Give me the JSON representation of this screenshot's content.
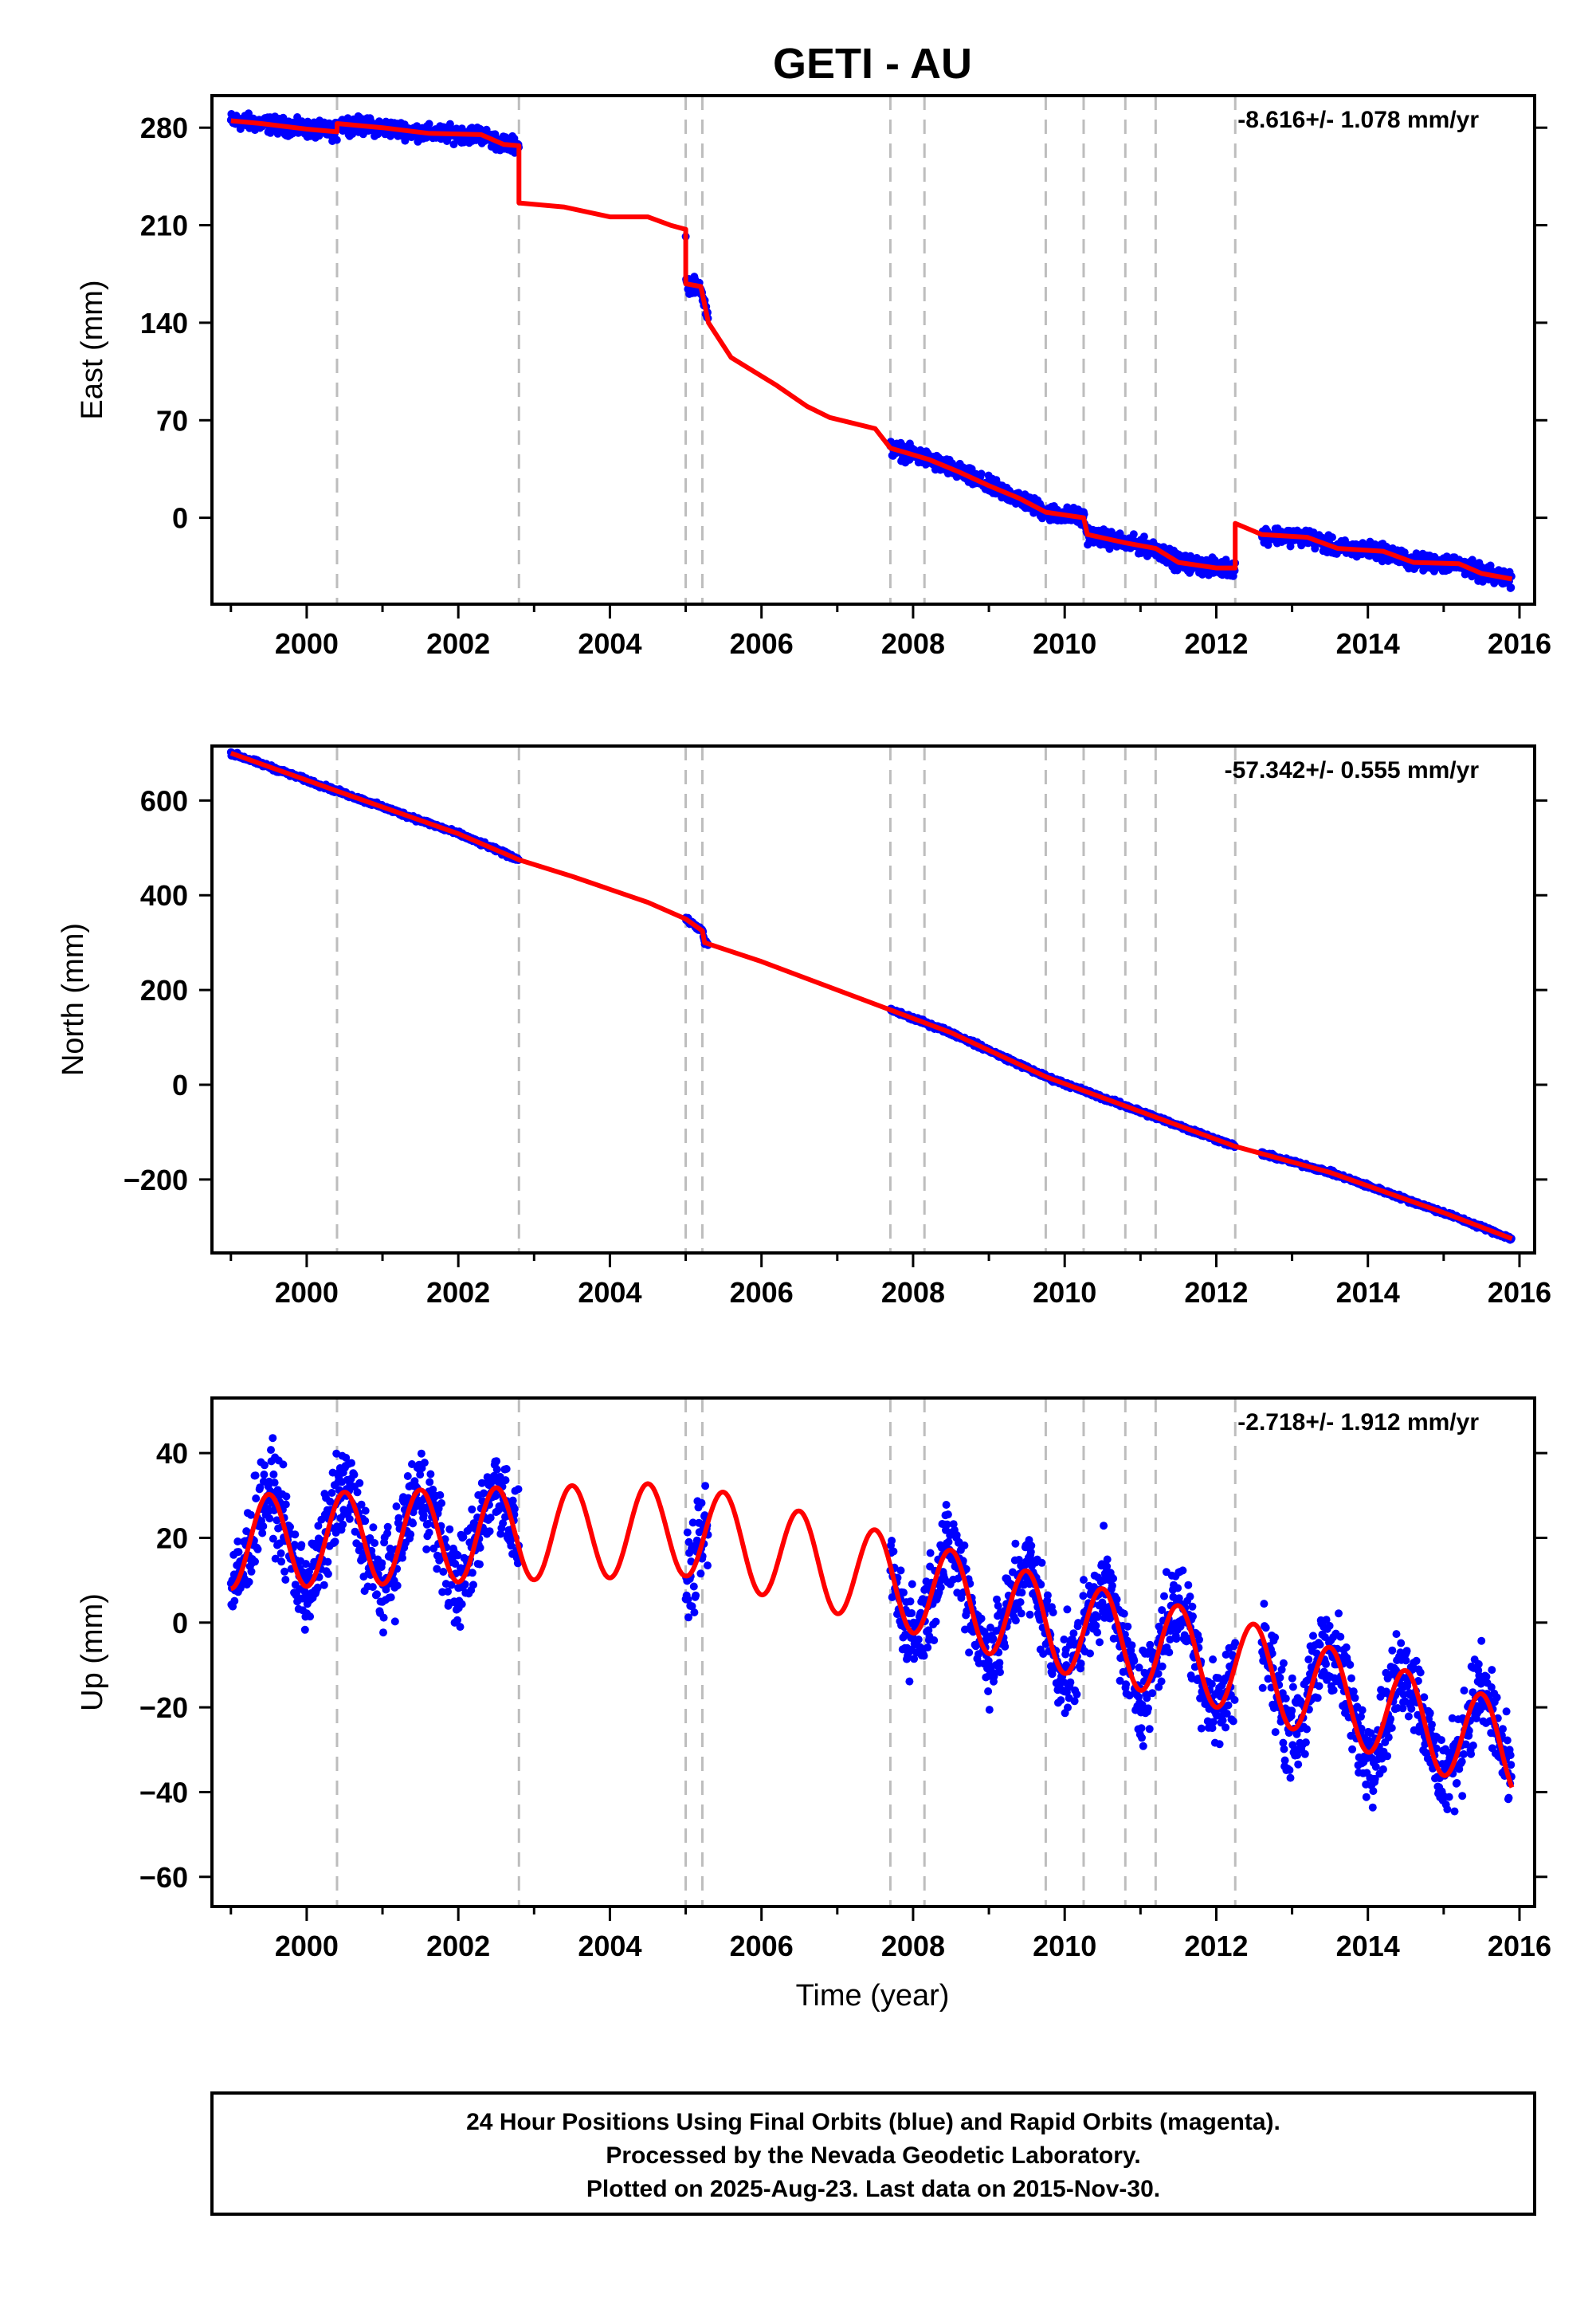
{
  "title": "GETI - AU",
  "colors": {
    "points": "#0000ff",
    "model": "#ff0000",
    "breaks": "#bdbdbd",
    "frame": "#000000"
  },
  "x_axis": {
    "label": "Time (year)",
    "range": [
      1998.75,
      2016.2
    ],
    "ticks": [
      "2000",
      "2002",
      "2004",
      "2006",
      "2008",
      "2010",
      "2012",
      "2014",
      "2016"
    ]
  },
  "footer": {
    "lines": [
      "24 Hour Positions Using Final Orbits (blue) and Rapid Orbits (magenta).",
      "Processed by the Nevada Geodetic Laboratory.",
      "Plotted on 2025-Aug-23. Last data on 2015-Nov-30."
    ]
  },
  "chart_data": [
    {
      "type": "scatter",
      "component": "east",
      "ylabel": "East (mm)",
      "rate_label": "-8.616+/- 1.078 mm/yr",
      "ylim": [
        -62,
        303
      ],
      "yticks": [
        "0",
        "70",
        "140",
        "210",
        "280"
      ],
      "ytick_values": [
        0,
        70,
        140,
        210,
        280
      ],
      "break_years": [
        2000.4,
        2002.8,
        2005.0,
        2005.22,
        2007.7,
        2008.15,
        2009.75,
        2010.25,
        2010.8,
        2011.2,
        2012.25
      ],
      "data_segments": [
        [
          1999.0,
          2002.8
        ],
        [
          2005.0,
          2005.3
        ],
        [
          2007.7,
          2012.25
        ],
        [
          2012.6,
          2015.9
        ]
      ],
      "model": [
        [
          1999.0,
          285
        ],
        [
          1999.4,
          283
        ],
        [
          2000.0,
          279
        ],
        [
          2000.4,
          277
        ],
        [
          2000.4,
          283
        ],
        [
          2001.0,
          280
        ],
        [
          2001.6,
          276
        ],
        [
          2002.3,
          275
        ],
        [
          2002.6,
          268
        ],
        [
          2002.8,
          267
        ],
        [
          2002.8,
          226
        ],
        [
          2003.4,
          223
        ],
        [
          2004.0,
          216
        ],
        [
          2004.5,
          216
        ],
        [
          2004.8,
          210
        ],
        [
          2005.0,
          207
        ],
        [
          2005.0,
          168
        ],
        [
          2005.2,
          166
        ],
        [
          2005.3,
          140
        ],
        [
          2005.6,
          115
        ],
        [
          2006.2,
          95
        ],
        [
          2006.6,
          80
        ],
        [
          2006.9,
          72
        ],
        [
          2007.5,
          64
        ],
        [
          2007.7,
          50
        ],
        [
          2008.2,
          42
        ],
        [
          2008.6,
          33
        ],
        [
          2009.0,
          23
        ],
        [
          2009.4,
          14
        ],
        [
          2009.75,
          4
        ],
        [
          2010.25,
          0
        ],
        [
          2010.3,
          -12
        ],
        [
          2010.8,
          -18
        ],
        [
          2011.2,
          -22
        ],
        [
          2011.5,
          -32
        ],
        [
          2012.0,
          -36
        ],
        [
          2012.25,
          -36
        ],
        [
          2012.25,
          -4
        ],
        [
          2012.6,
          -12
        ],
        [
          2013.2,
          -14
        ],
        [
          2013.6,
          -22
        ],
        [
          2014.2,
          -24
        ],
        [
          2014.6,
          -32
        ],
        [
          2015.2,
          -33
        ],
        [
          2015.5,
          -40
        ],
        [
          2015.9,
          -44
        ]
      ],
      "scatter_spread": 5
    },
    {
      "type": "scatter",
      "component": "north",
      "ylabel": "North (mm)",
      "rate_label": "-57.342+/- 0.555 mm/yr",
      "ylim": [
        -355,
        715
      ],
      "yticks": [
        "−200",
        "0",
        "200",
        "400",
        "600"
      ],
      "ytick_values": [
        -200,
        0,
        200,
        400,
        600
      ],
      "break_years": [
        2000.4,
        2002.8,
        2005.0,
        2005.22,
        2007.7,
        2008.15,
        2009.75,
        2010.25,
        2010.8,
        2011.2,
        2012.25
      ],
      "data_segments": [
        [
          1999.0,
          2002.8
        ],
        [
          2005.0,
          2005.3
        ],
        [
          2007.7,
          2012.25
        ],
        [
          2012.6,
          2015.9
        ]
      ],
      "model": [
        [
          1999.0,
          700
        ],
        [
          2000.4,
          620
        ],
        [
          2002.0,
          530
        ],
        [
          2002.8,
          475
        ],
        [
          2003.5,
          440
        ],
        [
          2004.5,
          385
        ],
        [
          2005.0,
          350
        ],
        [
          2005.22,
          325
        ],
        [
          2005.25,
          300
        ],
        [
          2006.0,
          260
        ],
        [
          2007.7,
          158
        ],
        [
          2008.5,
          110
        ],
        [
          2009.75,
          17
        ],
        [
          2010.8,
          -45
        ],
        [
          2012.25,
          -130
        ],
        [
          2013.5,
          -185
        ],
        [
          2015.0,
          -270
        ],
        [
          2015.9,
          -325
        ]
      ],
      "scatter_spread": 4
    },
    {
      "type": "scatter",
      "component": "up",
      "ylabel": "Up (mm)",
      "xlabel": "Time (year)",
      "rate_label": "-2.718+/- 1.912 mm/yr",
      "ylim": [
        -67,
        53
      ],
      "yticks": [
        "−60",
        "−40",
        "−20",
        "0",
        "20",
        "40"
      ],
      "ytick_values": [
        -60,
        -40,
        -20,
        0,
        20,
        40
      ],
      "break_years": [
        2000.4,
        2002.8,
        2005.0,
        2005.22,
        2007.7,
        2008.15,
        2009.75,
        2010.25,
        2010.8,
        2011.2,
        2012.25
      ],
      "data_segments": [
        [
          1999.0,
          2002.8
        ],
        [
          2005.0,
          2005.3
        ],
        [
          2007.7,
          2012.25
        ],
        [
          2012.6,
          2015.9
        ]
      ],
      "model_params": {
        "amplitude": 11,
        "period": 1.0,
        "phase": 1999.25,
        "offsets": [
          [
            1999.0,
            19
          ],
          [
            2002.8,
            21
          ],
          [
            2005.0,
            22
          ],
          [
            2007.7,
            10
          ],
          [
            2009.75,
            0
          ],
          [
            2012.25,
            -10
          ],
          [
            2015.9,
            -30
          ]
        ]
      },
      "scatter_spread": 9
    }
  ]
}
